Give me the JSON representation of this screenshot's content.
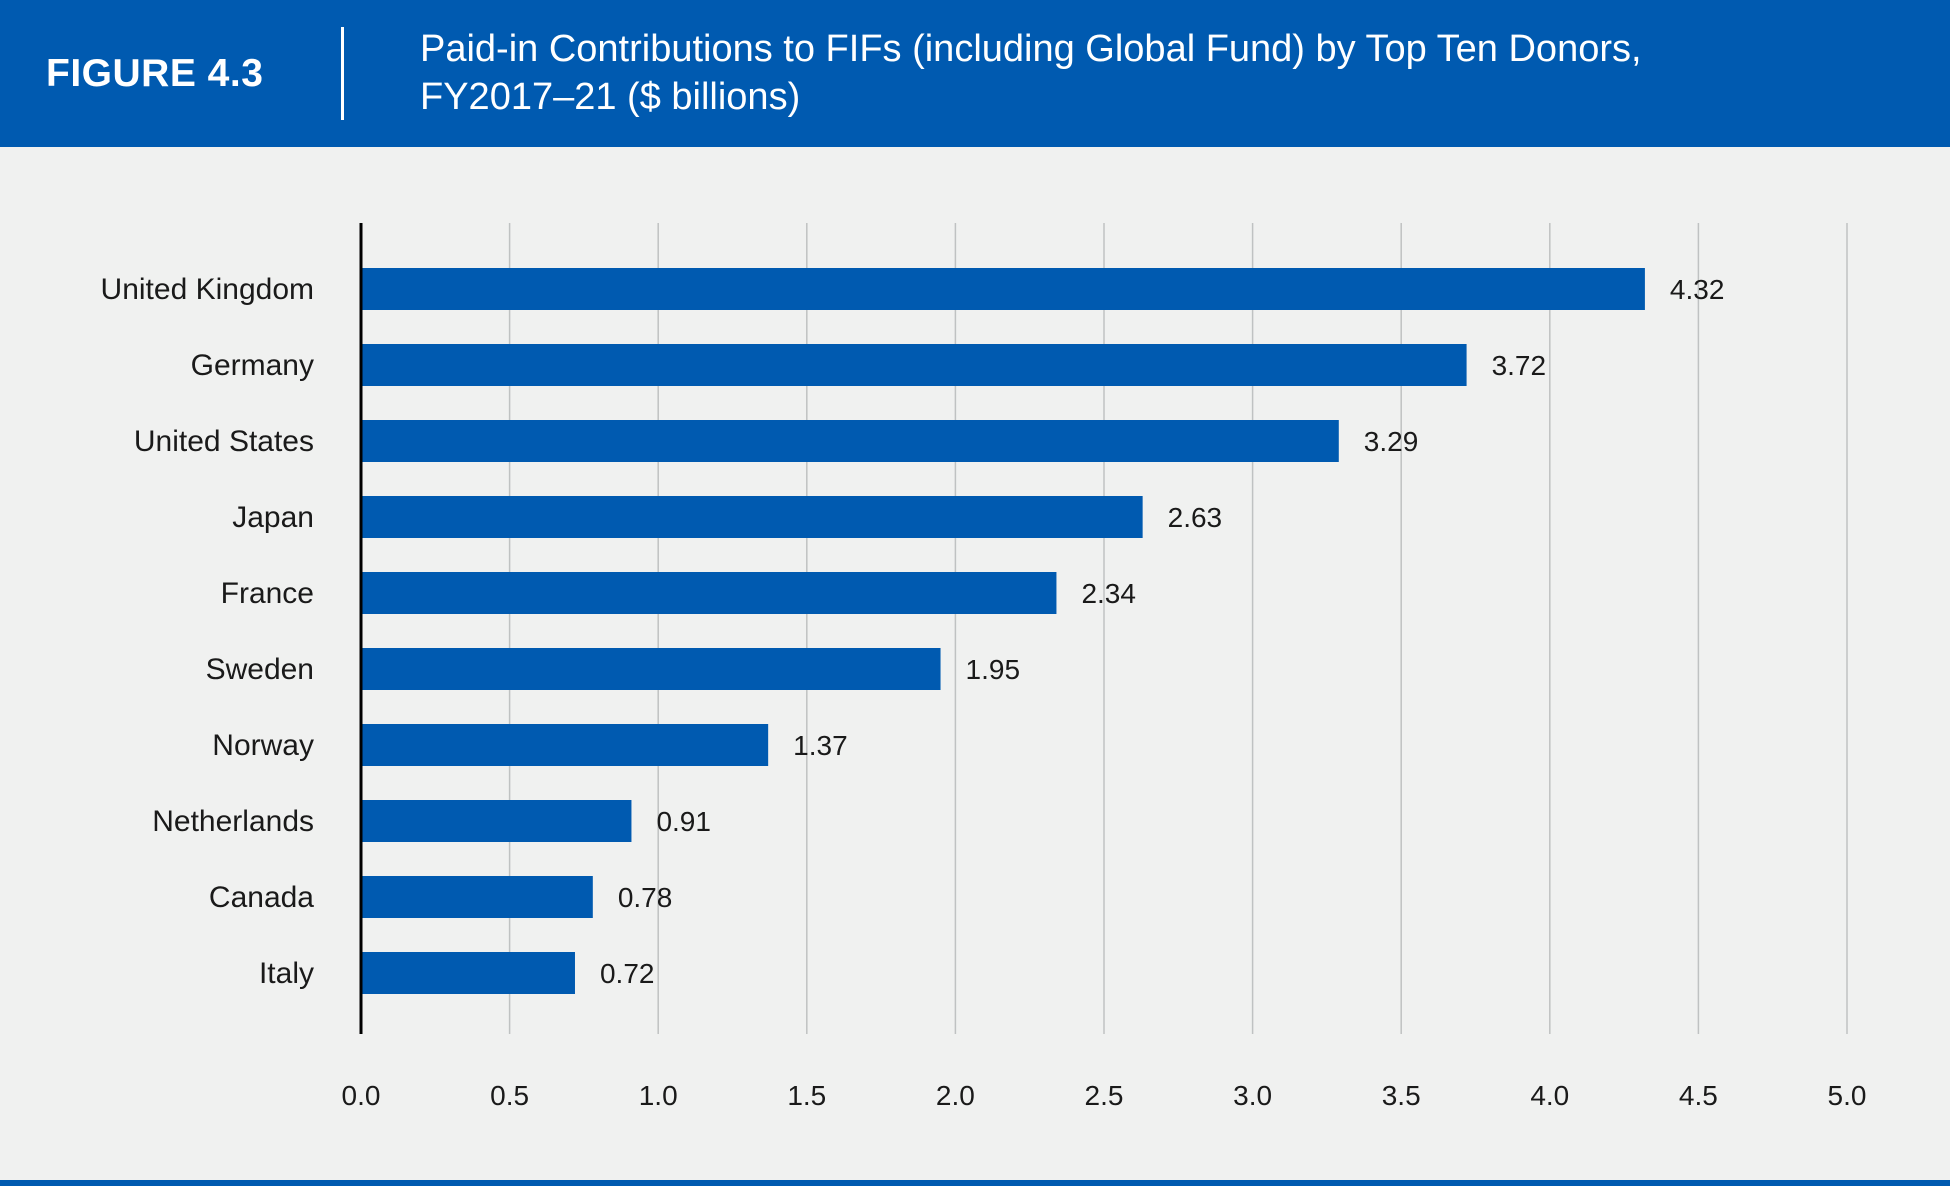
{
  "header": {
    "figure_label": "FIGURE 4.3",
    "title_line1": "Paid-in Contributions to FIFs (including Global Fund) by Top Ten Donors,",
    "title_line2": "FY2017–21 ($ billions)"
  },
  "colors": {
    "header_bg": "#005ab0",
    "bar": "#005ab0",
    "background": "#f0f1f0",
    "grid": "#bfc2c2",
    "text": "#1a1a1a"
  },
  "chart_data": {
    "type": "bar",
    "orientation": "horizontal",
    "title": "Paid-in Contributions to FIFs (including Global Fund) by Top Ten Donors, FY2017–21 ($ billions)",
    "categories": [
      "United Kingdom",
      "Germany",
      "United States",
      "Japan",
      "France",
      "Sweden",
      "Norway",
      "Netherlands",
      "Canada",
      "Italy"
    ],
    "values": [
      4.32,
      3.72,
      3.29,
      2.63,
      2.34,
      1.95,
      1.37,
      0.91,
      0.78,
      0.72
    ],
    "value_labels": [
      "4.32",
      "3.72",
      "3.29",
      "2.63",
      "2.34",
      "1.95",
      "1.37",
      "0.91",
      "0.78",
      "0.72"
    ],
    "xlim": [
      0,
      5
    ],
    "x_ticks": [
      0,
      0.5,
      1,
      1.5,
      2,
      2.5,
      3,
      3.5,
      4,
      4.5,
      5
    ],
    "x_tick_labels": [
      "0.0",
      "0.5",
      "1.0",
      "1.5",
      "2.0",
      "2.5",
      "3.0",
      "3.5",
      "4.0",
      "4.5",
      "5.0"
    ],
    "xlabel": "",
    "ylabel": "",
    "grid": "vertical",
    "legend": "none"
  }
}
